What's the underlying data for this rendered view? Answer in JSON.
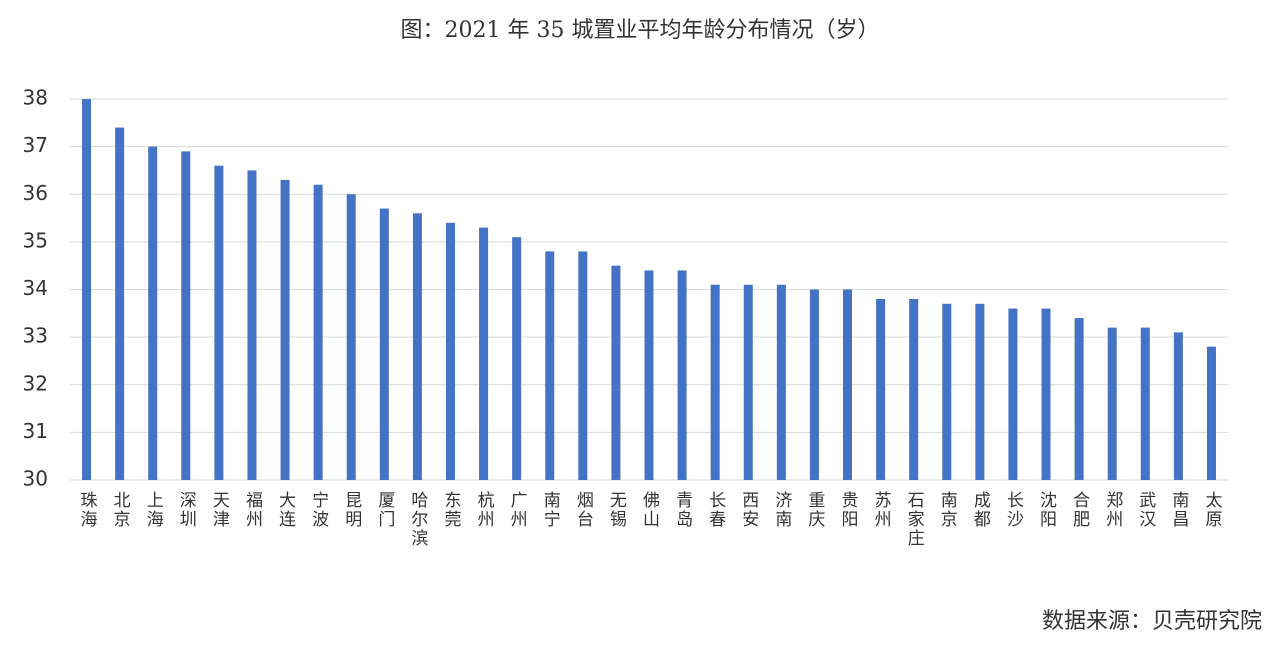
{
  "chart_data": {
    "type": "bar",
    "title": "图：2021 年 35 城置业平均年龄分布情况（岁）",
    "source": "数据来源：贝壳研究院",
    "categories": [
      "珠海",
      "北京",
      "上海",
      "深圳",
      "天津",
      "福州",
      "大连",
      "宁波",
      "昆明",
      "厦门",
      "哈尔滨",
      "东莞",
      "杭州",
      "广州",
      "南宁",
      "烟台",
      "无锡",
      "佛山",
      "青岛",
      "长春",
      "西安",
      "济南",
      "重庆",
      "贵阳",
      "苏州",
      "石家庄",
      "南京",
      "成都",
      "长沙",
      "沈阳",
      "合肥",
      "郑州",
      "武汉",
      "南昌",
      "太原"
    ],
    "values": [
      38.0,
      37.4,
      37.0,
      36.9,
      36.6,
      36.5,
      36.3,
      36.2,
      36.0,
      35.7,
      35.6,
      35.4,
      35.3,
      35.1,
      34.8,
      34.8,
      34.5,
      34.4,
      34.4,
      34.1,
      34.1,
      34.1,
      34.0,
      34.0,
      33.8,
      33.8,
      33.7,
      33.7,
      33.6,
      33.6,
      33.4,
      33.2,
      33.2,
      33.1,
      32.8
    ],
    "color": "#4472c4",
    "ylim": [
      30,
      38
    ],
    "yticks": [
      30,
      31,
      32,
      33,
      34,
      35,
      36,
      37,
      38
    ],
    "grid": true
  }
}
